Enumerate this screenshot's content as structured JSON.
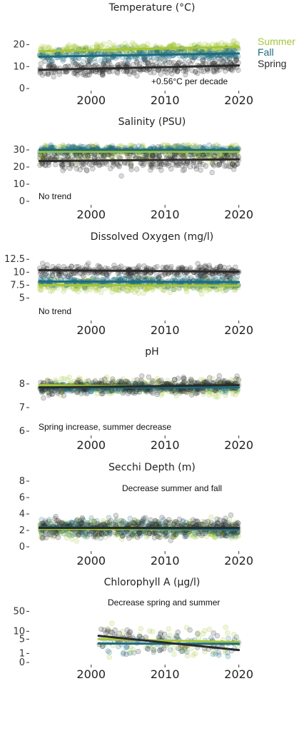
{
  "colors": {
    "summer": "#a4c639",
    "fall": "#1e6b7f",
    "spring": "#2a2a2a"
  },
  "legend": [
    "Summer",
    "Fall",
    "Spring"
  ],
  "chart_data": [
    {
      "type": "scatter",
      "title": "Temperature (°C)",
      "x_ticks": [
        2000,
        2010,
        2020
      ],
      "y_ticks": [
        "0",
        "10",
        "20"
      ],
      "ylim": [
        0,
        28
      ],
      "xlim": [
        1992,
        2021
      ],
      "annotation": "+0.56°C per decade",
      "series": [
        {
          "name": "Summer",
          "trend": [
            [
              1993,
              17.0
            ],
            [
              2020,
              19.0
            ]
          ],
          "y_range": [
            12,
            26
          ],
          "x_range": [
            1993,
            2020
          ]
        },
        {
          "name": "Fall",
          "trend": [
            [
              1993,
              14.5
            ],
            [
              2020,
              16.0
            ]
          ],
          "y_range": [
            6,
            22
          ],
          "x_range": [
            1993,
            2020
          ]
        },
        {
          "name": "Spring",
          "trend": [
            [
              1993,
              8.5
            ],
            [
              2020,
              10.5
            ]
          ],
          "y_range": [
            0,
            18
          ],
          "x_range": [
            1993,
            2020
          ]
        }
      ]
    },
    {
      "type": "scatter",
      "title": "Salinity (PSU)",
      "x_ticks": [
        2000,
        2010,
        2020
      ],
      "y_ticks": [
        "0",
        "10",
        "20",
        "30"
      ],
      "ylim": [
        0,
        35
      ],
      "xlim": [
        1992,
        2021
      ],
      "annotation": "No trend",
      "series": [
        {
          "name": "Summer",
          "trend": [
            [
              1993,
              29.0
            ],
            [
              2020,
              29.0
            ]
          ],
          "y_range": [
            0,
            33
          ],
          "x_range": [
            1993,
            2020
          ]
        },
        {
          "name": "Fall",
          "trend": [
            [
              1993,
              30.0
            ],
            [
              2020,
              30.0
            ]
          ],
          "y_range": [
            20,
            33
          ],
          "x_range": [
            1993,
            2020
          ]
        },
        {
          "name": "Spring",
          "trend": [
            [
              1993,
              23.5
            ],
            [
              2020,
              24.5
            ]
          ],
          "y_range": [
            0,
            33
          ],
          "x_range": [
            1993,
            2020
          ]
        }
      ]
    },
    {
      "type": "scatter",
      "title": "Dissolved Oxygen (mg/l)",
      "x_ticks": [
        2000,
        2010,
        2020
      ],
      "y_ticks": [
        "5",
        "7.5",
        "10",
        "12.5"
      ],
      "ylim": [
        3,
        13.5
      ],
      "xlim": [
        1992,
        2021
      ],
      "annotation": "No trend",
      "series": [
        {
          "name": "Summer",
          "trend": [
            [
              1993,
              7.5
            ],
            [
              2020,
              7.4
            ]
          ],
          "y_range": [
            3.5,
            11
          ],
          "x_range": [
            1993,
            2020
          ]
        },
        {
          "name": "Fall",
          "trend": [
            [
              1993,
              8.2
            ],
            [
              2020,
              8.1
            ]
          ],
          "y_range": [
            5,
            11
          ],
          "x_range": [
            1993,
            2020
          ]
        },
        {
          "name": "Spring",
          "trend": [
            [
              1993,
              10.4
            ],
            [
              2020,
              10.1
            ]
          ],
          "y_range": [
            7,
            13
          ],
          "x_range": [
            1993,
            2020
          ]
        }
      ]
    },
    {
      "type": "scatter",
      "title": "pH",
      "x_ticks": [
        2000,
        2010,
        2020
      ],
      "y_ticks": [
        "6",
        "7",
        "8"
      ],
      "ylim": [
        6,
        8.6
      ],
      "xlim": [
        1992,
        2021
      ],
      "annotation": "Spring increase, summer decrease",
      "series": [
        {
          "name": "Summer",
          "trend": [
            [
              1993,
              7.95
            ],
            [
              2020,
              7.85
            ]
          ],
          "y_range": [
            6.4,
            8.3
          ],
          "x_range": [
            1993,
            2020
          ]
        },
        {
          "name": "Fall",
          "trend": [
            [
              1993,
              7.85
            ],
            [
              2020,
              7.85
            ]
          ],
          "y_range": [
            7.2,
            8.2
          ],
          "x_range": [
            1993,
            2020
          ]
        },
        {
          "name": "Spring",
          "trend": [
            [
              1993,
              7.85
            ],
            [
              2020,
              7.95
            ]
          ],
          "y_range": [
            6.5,
            8.4
          ],
          "x_range": [
            1993,
            2020
          ]
        }
      ]
    },
    {
      "type": "scatter",
      "title": "Secchi Depth (m)",
      "x_ticks": [
        2000,
        2010,
        2020
      ],
      "y_ticks": [
        "0",
        "2",
        "4",
        "6",
        "8"
      ],
      "ylim": [
        0,
        8
      ],
      "xlim": [
        1992,
        2021
      ],
      "annotation": "Decrease summer and fall",
      "series": [
        {
          "name": "Summer",
          "trend": [
            [
              1993,
              2.2
            ],
            [
              2020,
              2.1
            ]
          ],
          "y_range": [
            0.2,
            6.5
          ],
          "x_range": [
            1993,
            2020
          ]
        },
        {
          "name": "Fall",
          "trend": [
            [
              1993,
              2.4
            ],
            [
              2020,
              2.1
            ]
          ],
          "y_range": [
            0.2,
            6
          ],
          "x_range": [
            1993,
            2020
          ]
        },
        {
          "name": "Spring",
          "trend": [
            [
              1993,
              2.3
            ],
            [
              2020,
              2.3
            ]
          ],
          "y_range": [
            0.2,
            6.5
          ],
          "x_range": [
            1993,
            2020
          ]
        }
      ]
    },
    {
      "type": "scatter",
      "title": "Chlorophyll A (µg/l)",
      "x_ticks": [
        2000,
        2010,
        2020
      ],
      "y_ticks": [
        "0",
        "1",
        "5",
        "10",
        "50"
      ],
      "y_scale": "log1p",
      "ylim": [
        0,
        80
      ],
      "xlim": [
        1992,
        2021
      ],
      "annotation": "Decrease spring and summer",
      "series": [
        {
          "name": "Summer",
          "trend": [
            [
              2001,
              5.0
            ],
            [
              2020,
              3.8
            ]
          ],
          "y_range": [
            0.5,
            60
          ],
          "x_range": [
            2001,
            2020
          ]
        },
        {
          "name": "Fall",
          "trend": [
            [
              2001,
              3.3
            ],
            [
              2020,
              3.2
            ]
          ],
          "y_range": [
            0.5,
            20
          ],
          "x_range": [
            2001,
            2020
          ]
        },
        {
          "name": "Spring",
          "trend": [
            [
              2001,
              6.8
            ],
            [
              2020,
              1.6
            ]
          ],
          "y_range": [
            0.5,
            40
          ],
          "x_range": [
            2001,
            2020
          ]
        }
      ]
    }
  ]
}
